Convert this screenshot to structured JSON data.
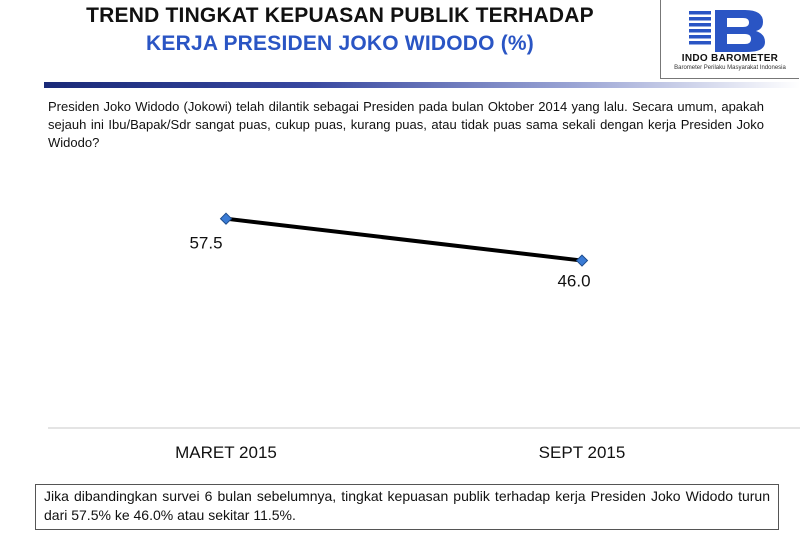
{
  "header": {
    "title_line1": "TREND TINGKAT KEPUASAN PUBLIK TERHADAP",
    "title_line2": "KERJA PRESIDEN JOKO WIDODO (%)"
  },
  "logo": {
    "name": "INDO BAROMETER",
    "tagline": "Barometer Perilaku Masyarakat Indonesia",
    "color": "#2a55c4"
  },
  "question": "Presiden Joko Widodo (Jokowi)  telah dilantik sebagai Presiden  pada bulan Oktober 2014  yang lalu. Secara umum, apakah sejauh ini Ibu/Bapak/Sdr sangat puas, cukup puas, kurang puas, atau tidak puas sama sekali dengan kerja Presiden Joko Widodo?",
  "chart_data": {
    "type": "line",
    "categories": [
      "MARET 2015",
      "SEPT 2015"
    ],
    "values": [
      57.5,
      46.0
    ],
    "value_labels": [
      "57.5",
      "46.0"
    ],
    "title": "",
    "xlabel": "",
    "ylabel": "",
    "ylim": [
      0,
      100
    ],
    "grid": false,
    "legend": "none",
    "line_color": "#000000",
    "marker_color": "#3a7bd5"
  },
  "summary": "Jika dibandingkan survei 6 bulan sebelumnya, tingkat kepuasan publik terhadap kerja Presiden Joko Widodo turun dari 57.5% ke 46.0% atau sekitar 11.5%."
}
